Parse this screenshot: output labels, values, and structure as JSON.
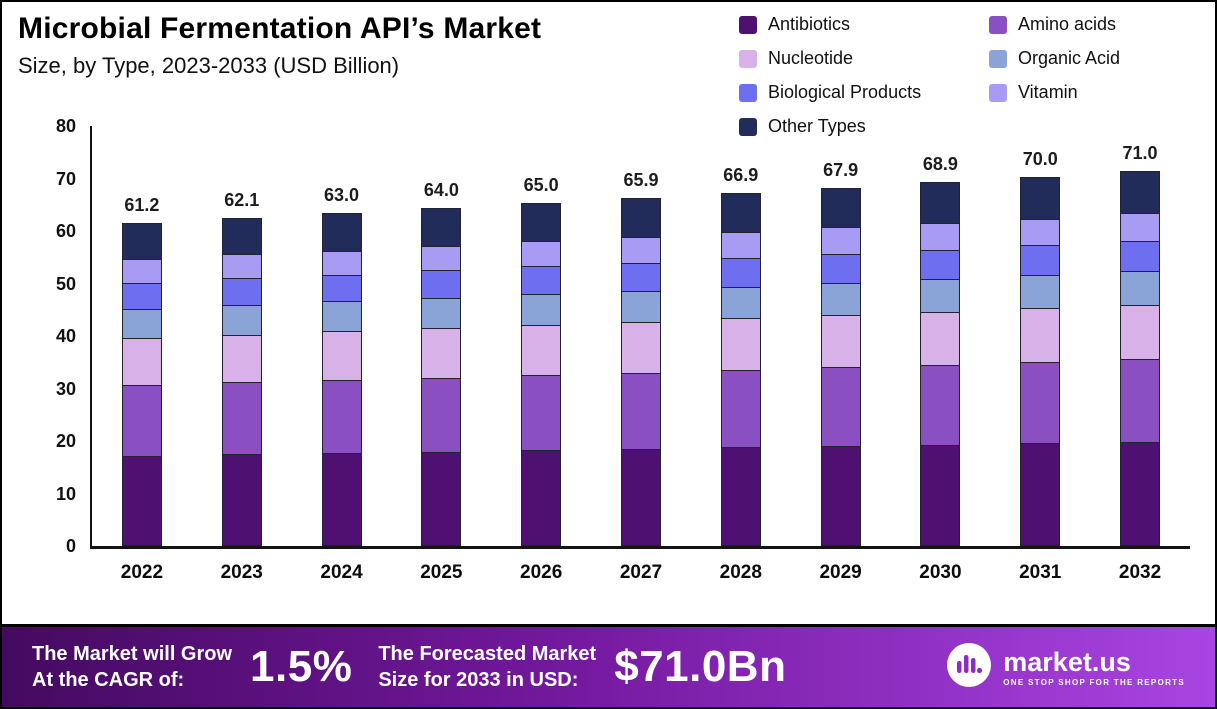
{
  "header": {
    "title": "Microbial Fermentation API’s Market",
    "subtitle": "Size, by Type, 2023-2033 (USD Billion)"
  },
  "chart_data": {
    "type": "bar",
    "stacked": true,
    "title": "Microbial Fermentation API’s Market Size, by Type, 2023-2033 (USD Billion)",
    "categories": [
      "2022",
      "2023",
      "2024",
      "2025",
      "2026",
      "2027",
      "2028",
      "2029",
      "2030",
      "2031",
      "2032"
    ],
    "totals": [
      61.2,
      62.1,
      63.0,
      64.0,
      65.0,
      65.9,
      66.9,
      67.9,
      68.9,
      70.0,
      71.0
    ],
    "series": [
      {
        "name": "Antibiotics",
        "color": "#4e1172",
        "values": [
          17.0,
          17.3,
          17.5,
          17.8,
          18.1,
          18.3,
          18.6,
          18.9,
          19.1,
          19.4,
          19.7
        ]
      },
      {
        "name": "Amino acids",
        "color": "#8a4fc0",
        "values": [
          13.5,
          13.7,
          13.9,
          14.1,
          14.3,
          14.5,
          14.8,
          15.0,
          15.2,
          15.4,
          15.7
        ]
      },
      {
        "name": "Nucleotide",
        "color": "#d7b1e8",
        "values": [
          9.0,
          9.1,
          9.3,
          9.4,
          9.6,
          9.7,
          9.8,
          10.0,
          10.1,
          10.3,
          10.4
        ]
      },
      {
        "name": "Organic Acid",
        "color": "#8ba4d8",
        "values": [
          5.5,
          5.6,
          5.7,
          5.8,
          5.8,
          5.9,
          6.0,
          6.1,
          6.2,
          6.3,
          6.4
        ]
      },
      {
        "name": "Biological Products",
        "color": "#6e6ff0",
        "values": [
          5.0,
          5.1,
          5.1,
          5.2,
          5.3,
          5.4,
          5.5,
          5.5,
          5.6,
          5.7,
          5.8
        ]
      },
      {
        "name": "Vitamin",
        "color": "#a89bf3",
        "values": [
          4.5,
          4.6,
          4.6,
          4.7,
          4.8,
          4.8,
          4.9,
          5.0,
          5.1,
          5.1,
          5.2
        ]
      },
      {
        "name": "Other Types",
        "color": "#222c5a",
        "values": [
          6.7,
          6.7,
          6.9,
          7.0,
          7.1,
          7.3,
          7.3,
          7.4,
          7.6,
          7.8,
          7.8
        ]
      }
    ],
    "xlabel": "",
    "ylabel": "",
    "ylim": [
      0,
      80
    ],
    "yticks": [
      0,
      10,
      20,
      30,
      40,
      50,
      60,
      70,
      80
    ],
    "grid": false,
    "legend_position": "top-right"
  },
  "banner": {
    "cagr_label_line1": "The Market will Grow",
    "cagr_label_line2": "At the CAGR of:",
    "cagr_value": "1.5%",
    "forecast_label_line1": "The Forecasted Market",
    "forecast_label_line2": "Size for 2033 in USD:",
    "forecast_value": "$71.0Bn",
    "brand_name": "market.us",
    "brand_tagline": "ONE STOP SHOP FOR THE REPORTS"
  },
  "colors": {
    "banner_gradient_start": "#440a60",
    "banner_gradient_end": "#a944e2",
    "axis": "#141414"
  }
}
